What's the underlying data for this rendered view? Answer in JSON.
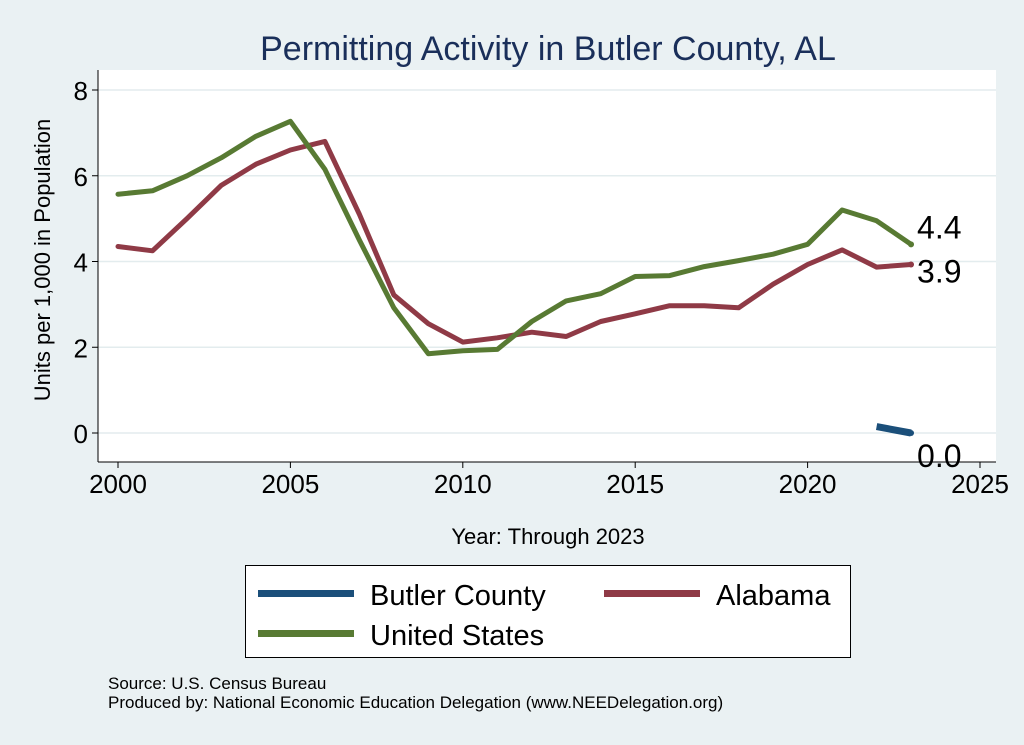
{
  "chart_data": {
    "type": "line",
    "title": "Permitting Activity in Butler County, AL",
    "xlabel": "Year: Through 2023",
    "ylabel": "Units per 1,000 in Population",
    "xlim": [
      2000,
      2025
    ],
    "ylim": [
      0,
      8
    ],
    "x_ticks": [
      2000,
      2005,
      2010,
      2015,
      2020,
      2025
    ],
    "y_ticks": [
      0,
      2,
      4,
      6,
      8
    ],
    "grid": true,
    "legend": "bottom",
    "series": [
      {
        "name": "Butler County",
        "color": "#1b4f7a",
        "x": [
          2022,
          2023
        ],
        "values": [
          0.15,
          0.0
        ],
        "end_label": "0.0"
      },
      {
        "name": "Alabama",
        "color": "#8f3a46",
        "x": [
          2000,
          2001,
          2002,
          2003,
          2004,
          2005,
          2006,
          2007,
          2008,
          2009,
          2010,
          2011,
          2012,
          2013,
          2014,
          2015,
          2016,
          2017,
          2018,
          2019,
          2020,
          2021,
          2022,
          2023
        ],
        "values": [
          4.35,
          4.25,
          5.0,
          5.78,
          6.27,
          6.6,
          6.8,
          5.1,
          3.22,
          2.55,
          2.12,
          2.22,
          2.35,
          2.25,
          2.6,
          2.78,
          2.97,
          2.97,
          2.92,
          3.47,
          3.93,
          4.27,
          3.87,
          3.93
        ],
        "end_label": "3.9"
      },
      {
        "name": "United States",
        "color": "#587a33",
        "x": [
          2000,
          2001,
          2002,
          2003,
          2004,
          2005,
          2006,
          2007,
          2008,
          2009,
          2010,
          2011,
          2012,
          2013,
          2014,
          2015,
          2016,
          2017,
          2018,
          2019,
          2020,
          2021,
          2022,
          2023
        ],
        "values": [
          5.57,
          5.65,
          6.0,
          6.42,
          6.92,
          7.27,
          6.15,
          4.5,
          2.92,
          1.85,
          1.92,
          1.95,
          2.6,
          3.08,
          3.25,
          3.65,
          3.67,
          3.88,
          4.02,
          4.17,
          4.4,
          5.2,
          4.95,
          4.4
        ],
        "end_label": "4.4"
      }
    ]
  },
  "legend_items": {
    "butler": "Butler County",
    "alabama": "Alabama",
    "us": "United States"
  },
  "footer": {
    "source": "Source: U.S. Census Bureau",
    "produced": "Produced by: National Economic Education Delegation (www.NEEDelegation.org)"
  }
}
